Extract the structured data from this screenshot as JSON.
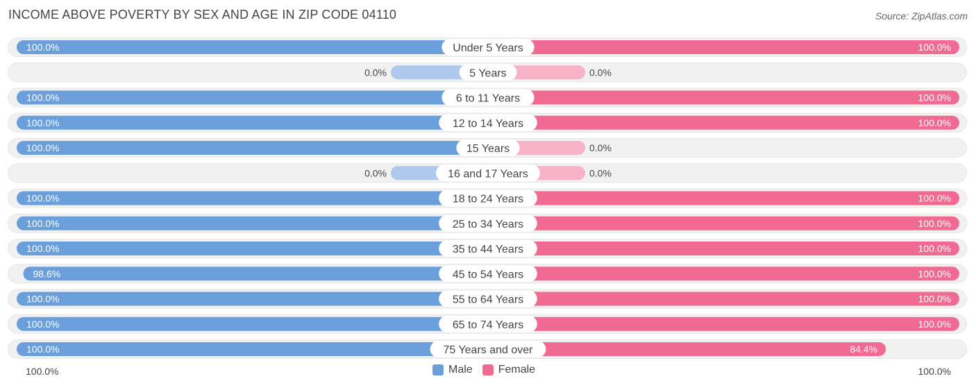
{
  "title": "INCOME ABOVE POVERTY BY SEX AND AGE IN ZIP CODE 04110",
  "source": "Source: ZipAtlas.com",
  "colors": {
    "male": "#6a9fdc",
    "male_light": "#aec9ec",
    "female": "#f06a94",
    "female_light": "#f7b2c8",
    "track": "#f1f1f1"
  },
  "legend": {
    "male": "Male",
    "female": "Female"
  },
  "axis": {
    "left": "100.0%",
    "right": "100.0%"
  },
  "chart_data": {
    "type": "bar",
    "orientation": "horizontal-diverging",
    "title": "INCOME ABOVE POVERTY BY SEX AND AGE IN ZIP CODE 04110",
    "categories": [
      "Under 5 Years",
      "5 Years",
      "6 to 11 Years",
      "12 to 14 Years",
      "15 Years",
      "16 and 17 Years",
      "18 to 24 Years",
      "25 to 34 Years",
      "35 to 44 Years",
      "45 to 54 Years",
      "55 to 64 Years",
      "65 to 74 Years",
      "75 Years and over"
    ],
    "series": [
      {
        "name": "Male",
        "values": [
          100.0,
          0.0,
          100.0,
          100.0,
          100.0,
          0.0,
          100.0,
          100.0,
          100.0,
          98.6,
          100.0,
          100.0,
          100.0
        ]
      },
      {
        "name": "Female",
        "values": [
          100.0,
          0.0,
          100.0,
          100.0,
          0.0,
          0.0,
          100.0,
          100.0,
          100.0,
          100.0,
          100.0,
          100.0,
          84.4
        ]
      }
    ],
    "labels": {
      "Male": [
        "100.0%",
        "0.0%",
        "100.0%",
        "100.0%",
        "100.0%",
        "0.0%",
        "100.0%",
        "100.0%",
        "100.0%",
        "98.6%",
        "100.0%",
        "100.0%",
        "100.0%"
      ],
      "Female": [
        "100.0%",
        "0.0%",
        "100.0%",
        "100.0%",
        "0.0%",
        "0.0%",
        "100.0%",
        "100.0%",
        "100.0%",
        "100.0%",
        "100.0%",
        "100.0%",
        "84.4%"
      ]
    },
    "xlim": [
      0,
      100
    ],
    "unit": "%"
  }
}
